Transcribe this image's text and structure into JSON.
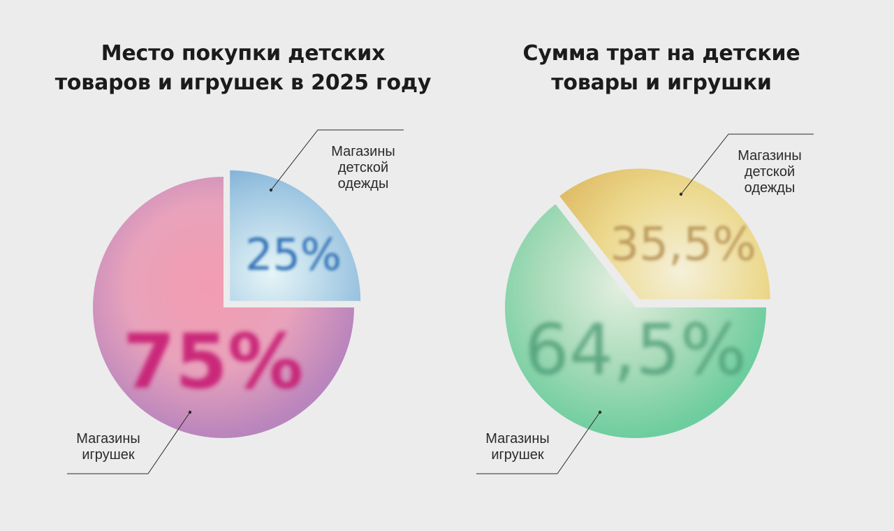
{
  "chart_data": [
    {
      "type": "pie",
      "title": [
        "Место покупки детских",
        "товаров и игрушек в 2025 году"
      ],
      "slices": [
        {
          "label": [
            "Магазины",
            "игрушек"
          ],
          "value": 75,
          "value_label": "75%",
          "colors": [
            "#f39cb1",
            "#e8a2bb",
            "#b985bd"
          ],
          "text_color": "#c71f73"
        },
        {
          "label": [
            "Магазины",
            "детской",
            "одежды"
          ],
          "value": 25,
          "value_label": "25%",
          "colors": [
            "#e6f5f7",
            "#9fc7e2",
            "#5f98c9"
          ],
          "text_color": "#2166b0"
        }
      ]
    },
    {
      "type": "pie",
      "title": [
        "Сумма трат на детские",
        "товары и игрушки"
      ],
      "slices": [
        {
          "label": [
            "Магазины",
            "игрушек"
          ],
          "value": 64.5,
          "value_label": "64,5%",
          "colors": [
            "#e3efe0",
            "#a8dbb9",
            "#6ecd9e"
          ],
          "text_color": "#4a9a73"
        },
        {
          "label": [
            "Магазины",
            "детской",
            "одежды"
          ],
          "value": 35.5,
          "value_label": "35,5%",
          "colors": [
            "#f5f0d9",
            "#ecd98e",
            "#ddb860"
          ],
          "text_color": "#b0884a"
        }
      ]
    }
  ],
  "colors": {
    "background": "#ececec",
    "title": "#1b1b1b",
    "leader_line": "#2a2a2a"
  }
}
